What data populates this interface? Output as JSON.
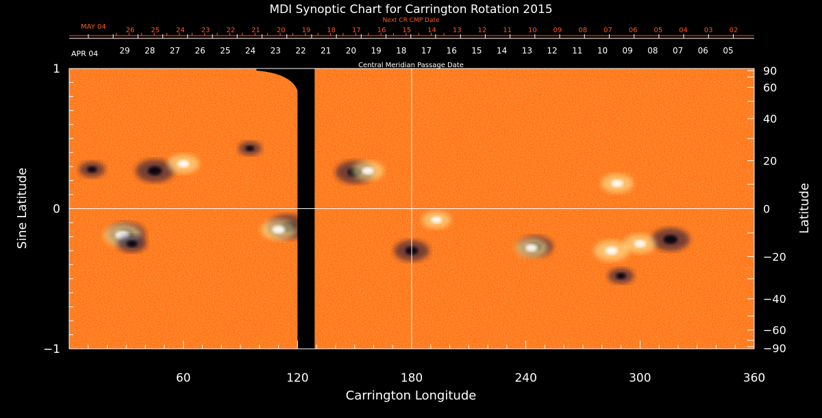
{
  "chart_data": {
    "type": "heatmap",
    "title": "MDI Synoptic Chart for Carrington Rotation 2015",
    "xlabel": "Carrington Longitude",
    "ylabel_left": "Sine Latitude",
    "ylabel_right": "Latitude",
    "xlim": [
      0,
      360
    ],
    "ylim": [
      -1,
      1
    ],
    "x_ticks": [
      60,
      120,
      180,
      240,
      300,
      360
    ],
    "y_ticks_left": [
      {
        "value": 1,
        "label": "1"
      },
      {
        "value": 0,
        "label": "0"
      },
      {
        "value": -1,
        "label": "−1"
      }
    ],
    "y_ticks_right": [
      {
        "deg": 90,
        "label": "90"
      },
      {
        "deg": 60,
        "label": "60"
      },
      {
        "deg": 40,
        "label": "40"
      },
      {
        "deg": 20,
        "label": "20"
      },
      {
        "deg": 0,
        "label": "0"
      },
      {
        "deg": -20,
        "label": "−20"
      },
      {
        "deg": -40,
        "label": "−40"
      },
      {
        "deg": -60,
        "label": "−60"
      },
      {
        "deg": -90,
        "label": "−90"
      }
    ],
    "cmp_axis_label": "Central Meridian Passage Date",
    "cmp_start_label": "APR 04",
    "cmp_dates": [
      "29",
      "28",
      "27",
      "26",
      "25",
      "24",
      "23",
      "22",
      "21",
      "20",
      "19",
      "18",
      "17",
      "16",
      "15",
      "14",
      "13",
      "12",
      "11",
      "10",
      "09",
      "08",
      "07",
      "06",
      "05"
    ],
    "next_cr_axis_label": "Next CR CMP Date",
    "next_cr_start_label": "MAY 04",
    "next_cr_dates": [
      "26",
      "25",
      "24",
      "23",
      "22",
      "21",
      "20",
      "19",
      "18",
      "17",
      "16",
      "15",
      "14",
      "13",
      "12",
      "11",
      "10",
      "09",
      "08",
      "07",
      "06",
      "05",
      "04",
      "03",
      "02"
    ],
    "data_gap_longitude": [
      120,
      129
    ],
    "crosshair": {
      "longitude": 180,
      "sine_latitude": 0
    },
    "active_regions": [
      {
        "lon": 45,
        "sinlat": 0.27,
        "polarity": "negative",
        "strength": 0.9
      },
      {
        "lon": 60,
        "sinlat": 0.32,
        "polarity": "positive",
        "strength": 0.7
      },
      {
        "lon": 12,
        "sinlat": 0.28,
        "polarity": "negative",
        "strength": 0.5
      },
      {
        "lon": 30,
        "sinlat": -0.18,
        "polarity": "negative",
        "strength": 0.9
      },
      {
        "lon": 28,
        "sinlat": -0.19,
        "polarity": "positive",
        "strength": 0.9
      },
      {
        "lon": 33,
        "sinlat": -0.25,
        "polarity": "negative",
        "strength": 0.6
      },
      {
        "lon": 115,
        "sinlat": -0.13,
        "polarity": "negative",
        "strength": 1.0
      },
      {
        "lon": 110,
        "sinlat": -0.15,
        "polarity": "positive",
        "strength": 0.8
      },
      {
        "lon": 150,
        "sinlat": 0.26,
        "polarity": "negative",
        "strength": 0.9
      },
      {
        "lon": 157,
        "sinlat": 0.27,
        "polarity": "positive",
        "strength": 0.7
      },
      {
        "lon": 180,
        "sinlat": -0.3,
        "polarity": "negative",
        "strength": 0.8
      },
      {
        "lon": 193,
        "sinlat": -0.08,
        "polarity": "positive",
        "strength": 0.6
      },
      {
        "lon": 245,
        "sinlat": -0.27,
        "polarity": "negative",
        "strength": 0.8
      },
      {
        "lon": 243,
        "sinlat": -0.28,
        "polarity": "positive",
        "strength": 0.7
      },
      {
        "lon": 288,
        "sinlat": 0.18,
        "polarity": "positive",
        "strength": 0.7
      },
      {
        "lon": 285,
        "sinlat": -0.3,
        "polarity": "positive",
        "strength": 0.8
      },
      {
        "lon": 316,
        "sinlat": -0.22,
        "polarity": "negative",
        "strength": 0.9
      },
      {
        "lon": 300,
        "sinlat": -0.25,
        "polarity": "positive",
        "strength": 0.7
      },
      {
        "lon": 290,
        "sinlat": -0.48,
        "polarity": "negative",
        "strength": 0.5
      },
      {
        "lon": 95,
        "sinlat": 0.43,
        "polarity": "negative",
        "strength": 0.4
      }
    ]
  },
  "colors": {
    "background": "#000000",
    "field_base": "#ff6a10",
    "positive": "#fff2a0",
    "negative": "#1a1240",
    "axes": "#ffffff",
    "next_cr_axis": "#ff5a1f"
  }
}
